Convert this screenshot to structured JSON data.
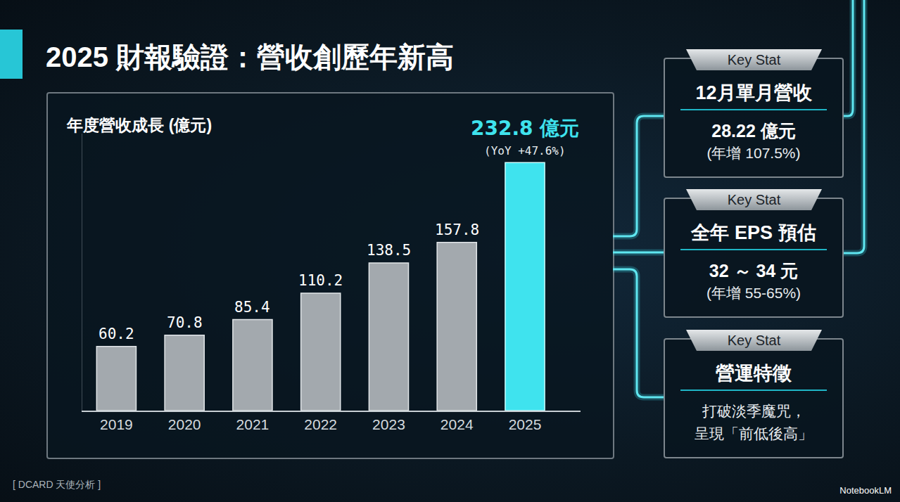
{
  "heading": "2025 財報驗證：營收創歷年新高",
  "chart_data": {
    "type": "bar",
    "title": "年度營收成長 (億元)",
    "categories": [
      "2019",
      "2020",
      "2021",
      "2022",
      "2023",
      "2024",
      "2025"
    ],
    "values": [
      60.2,
      70.8,
      85.4,
      110.2,
      138.5,
      157.8,
      232.8
    ],
    "value_labels": [
      "60.2",
      "70.8",
      "85.4",
      "110.2",
      "138.5",
      "157.8",
      "232.8 億元"
    ],
    "colors": [
      "#a3a9ae",
      "#a3a9ae",
      "#a3a9ae",
      "#a3a9ae",
      "#a3a9ae",
      "#a3a9ae",
      "#3fe3ee"
    ],
    "annotations": [
      {
        "category": "2025",
        "text": "(YoY +47.6%)"
      }
    ],
    "ylim": [
      0,
      260
    ],
    "grid": false,
    "data_labels": true,
    "tick_labels": "x"
  },
  "key_stats": [
    {
      "header": "Key Stat",
      "title": "12月單月營收",
      "value": "28.22 億元",
      "note": "(年增 107.5%)"
    },
    {
      "header": "Key Stat",
      "title": "全年 EPS 預估",
      "value": "32 ～ 34 元",
      "note": "(年增 55-65%)"
    },
    {
      "header": "Key Stat",
      "title": "營運特徵",
      "lines": [
        "打破淡季魔咒，",
        "呈現「前低後高」"
      ]
    }
  ],
  "footer": {
    "source": "[ DCARD 天使分析 ]",
    "brand": "NotebookLM"
  }
}
